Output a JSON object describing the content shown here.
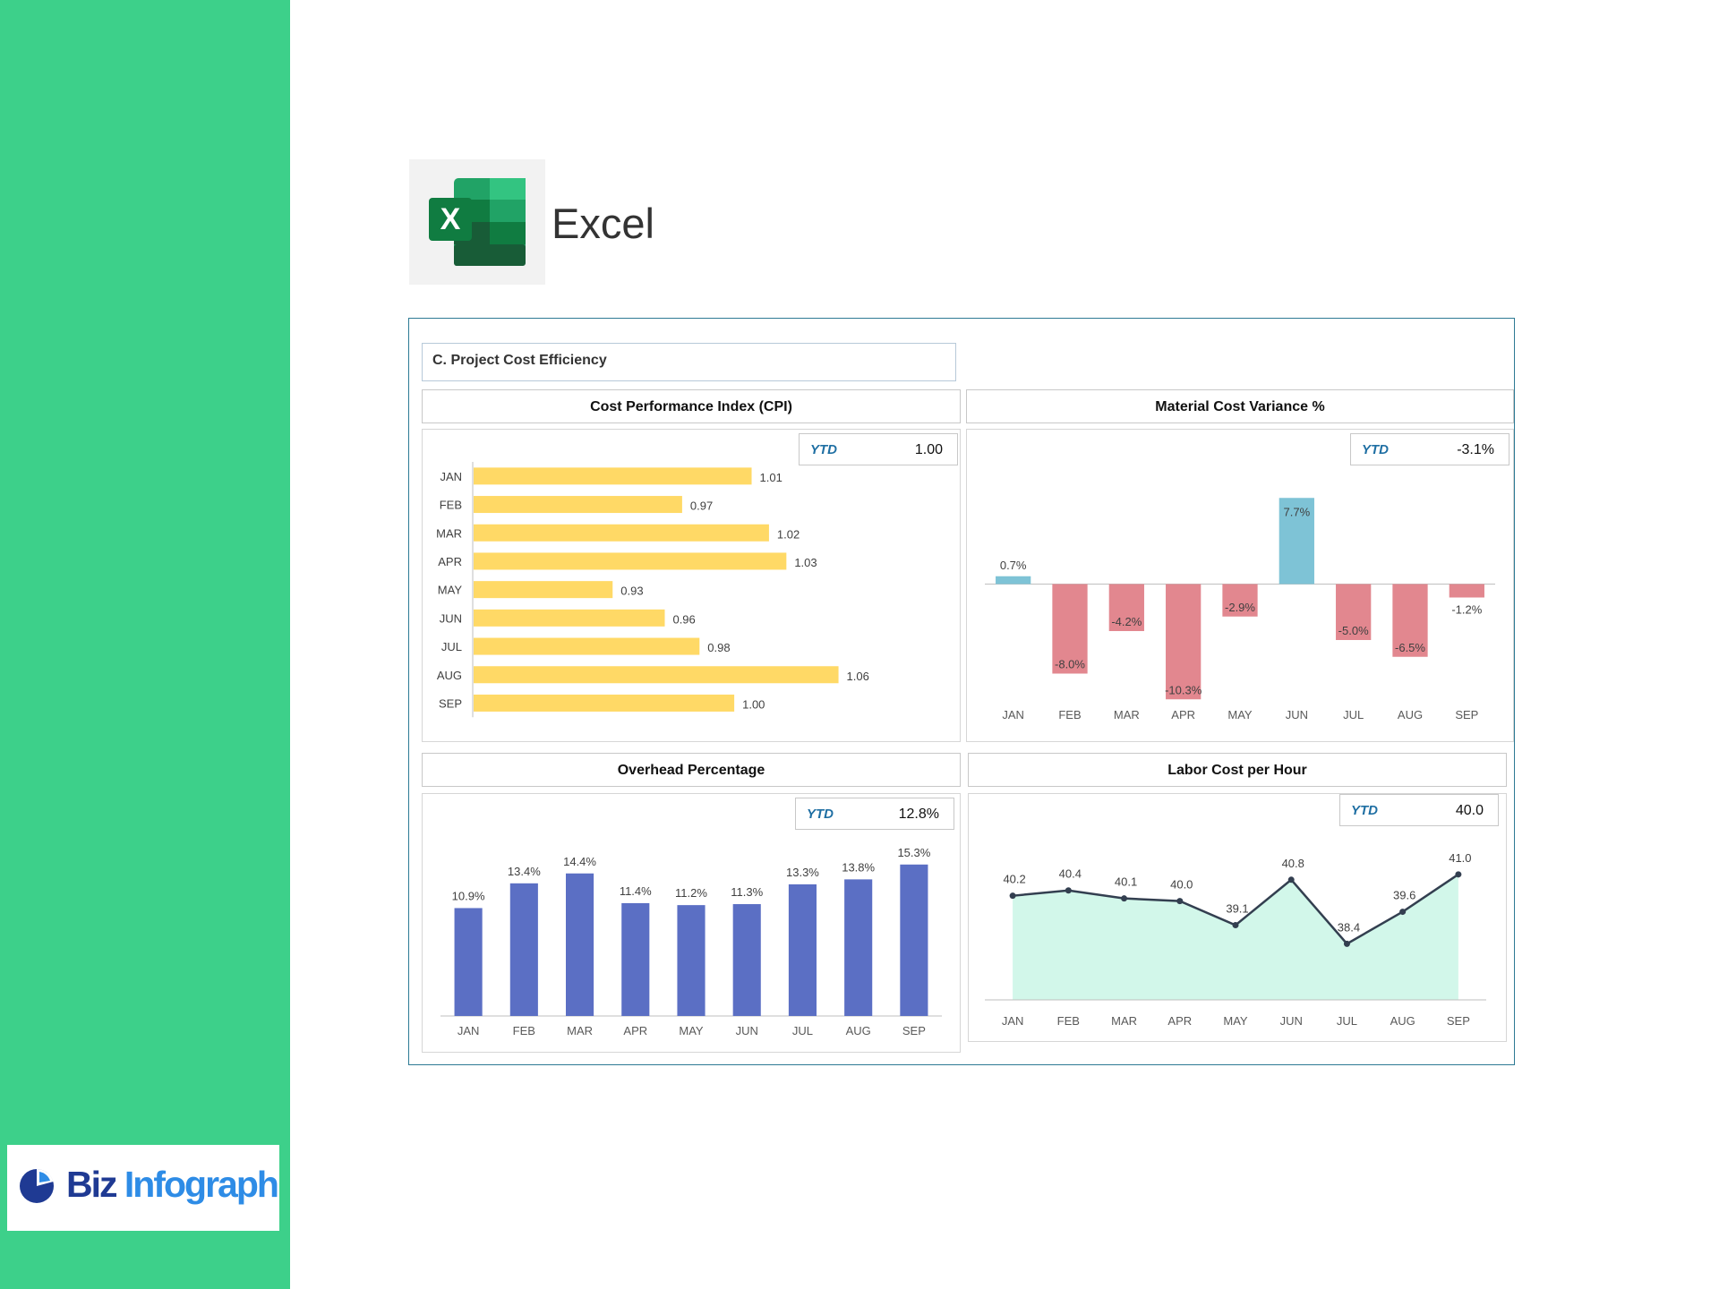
{
  "app": {
    "name": "Excel"
  },
  "brand": {
    "biz": "Biz",
    "infograph": "Infograph"
  },
  "section": {
    "title": "C. Project Cost Efficiency"
  },
  "months": [
    "JAN",
    "FEB",
    "MAR",
    "APR",
    "MAY",
    "JUN",
    "JUL",
    "AUG",
    "SEP"
  ],
  "colors": {
    "sidebar": "#3dd08a",
    "cpi_bar": "#ffd966",
    "variance_positive": "#7ec3d6",
    "variance_negative": "#e2878f",
    "overhead_bar": "#5b6fc4",
    "labor_line": "#333f50",
    "labor_area": "#d2f7ea"
  },
  "panels": {
    "cpi": {
      "title": "Cost Performance Index (CPI)",
      "ytd_label": "YTD",
      "ytd_value": "1.00"
    },
    "material": {
      "title": "Material Cost Variance %",
      "ytd_label": "YTD",
      "ytd_value": "-3.1%"
    },
    "overhead": {
      "title": "Overhead Percentage",
      "ytd_label": "YTD",
      "ytd_value": "12.8%"
    },
    "labor": {
      "title": "Labor Cost per Hour",
      "ytd_label": "YTD",
      "ytd_value": "40.0"
    }
  },
  "chart_data": [
    {
      "id": "cpi",
      "type": "bar",
      "orientation": "horizontal",
      "title": "Cost Performance Index (CPI)",
      "categories": [
        "JAN",
        "FEB",
        "MAR",
        "APR",
        "MAY",
        "JUN",
        "JUL",
        "AUG",
        "SEP"
      ],
      "values": [
        1.01,
        0.97,
        1.02,
        1.03,
        0.93,
        0.96,
        0.98,
        1.06,
        1.0
      ],
      "labels": [
        "1.01",
        "0.97",
        "1.02",
        "1.03",
        "0.93",
        "0.96",
        "0.98",
        "1.06",
        "1.00"
      ],
      "xlim": [
        0.85,
        1.12
      ],
      "grid": false
    },
    {
      "id": "material",
      "type": "bar",
      "title": "Material Cost Variance %",
      "categories": [
        "JAN",
        "FEB",
        "MAR",
        "APR",
        "MAY",
        "JUN",
        "JUL",
        "AUG",
        "SEP"
      ],
      "values": [
        0.7,
        -8.0,
        -4.2,
        -10.3,
        -2.9,
        7.7,
        -5.0,
        -6.5,
        -1.2
      ],
      "labels": [
        "0.7%",
        "-8.0%",
        "-4.2%",
        "-10.3%",
        "-2.9%",
        "7.7%",
        "-5.0%",
        "-6.5%",
        "-1.2%"
      ],
      "ylim": [
        -11,
        9
      ],
      "grid": false
    },
    {
      "id": "overhead",
      "type": "bar",
      "title": "Overhead Percentage",
      "categories": [
        "JAN",
        "FEB",
        "MAR",
        "APR",
        "MAY",
        "JUN",
        "JUL",
        "AUG",
        "SEP"
      ],
      "values": [
        10.9,
        13.4,
        14.4,
        11.4,
        11.2,
        11.3,
        13.3,
        13.8,
        15.3
      ],
      "labels": [
        "10.9%",
        "13.4%",
        "14.4%",
        "11.4%",
        "11.2%",
        "11.3%",
        "13.3%",
        "13.8%",
        "15.3%"
      ],
      "ylim": [
        0,
        17
      ],
      "grid": false
    },
    {
      "id": "labor",
      "type": "area",
      "title": "Labor Cost per Hour",
      "categories": [
        "JAN",
        "FEB",
        "MAR",
        "APR",
        "MAY",
        "JUN",
        "JUL",
        "AUG",
        "SEP"
      ],
      "values": [
        40.2,
        40.4,
        40.1,
        40.0,
        39.1,
        40.8,
        38.4,
        39.6,
        41.0
      ],
      "labels": [
        "40.2",
        "40.4",
        "40.1",
        "40.0",
        "39.1",
        "40.8",
        "38.4",
        "39.6",
        "41.0"
      ],
      "ylim": [
        36.3,
        42.0
      ],
      "grid": false
    }
  ]
}
